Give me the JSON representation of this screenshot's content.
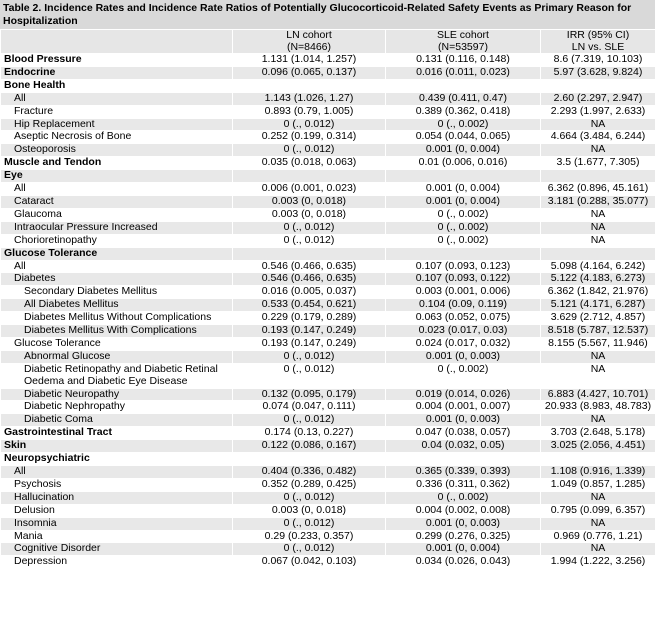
{
  "title": "Table 2. Incidence Rates and Incidence Rate Ratios of Potentially Glucocorticoid-Related Safety Events as Primary Reason for Hospitalization",
  "columns": [
    [
      "LN cohort",
      "(N=8466)"
    ],
    [
      "SLE cohort",
      "(N=53597)"
    ],
    [
      "IRR (95% CI)",
      "LN vs. SLE"
    ]
  ],
  "sections": [
    {
      "label": "Blood Pressure",
      "cells": [
        "1.131 (1.014, 1.257)",
        "0.131 (0.116, 0.148)",
        "8.6 (7.319, 10.103)"
      ]
    },
    {
      "label": "Endocrine",
      "cells": [
        "0.096 (0.065, 0.137)",
        "0.016 (0.011, 0.023)",
        "5.97 (3.628, 9.824)"
      ]
    },
    {
      "label": "Bone Health",
      "rows": [
        {
          "label": "All",
          "cells": [
            "1.143 (1.026, 1.27)",
            "0.439 (0.411, 0.47)",
            "2.60 (2.297, 2.947)"
          ]
        },
        {
          "label": "Fracture",
          "cells": [
            "0.893 (0.79, 1.005)",
            "0.389 (0.362, 0.418)",
            "2.293 (1.997, 2.633)"
          ]
        },
        {
          "label": "Hip Replacement",
          "cells": [
            "0 (., 0.012)",
            "0 (., 0.002)",
            "NA"
          ]
        },
        {
          "label": "Aseptic Necrosis of Bone",
          "cells": [
            "0.252 (0.199, 0.314)",
            "0.054 (0.044, 0.065)",
            "4.664 (3.484, 6.244)"
          ]
        },
        {
          "label": "Osteoporosis",
          "cells": [
            "0 (., 0.012)",
            "0.001 (0, 0.004)",
            "NA"
          ]
        }
      ]
    },
    {
      "label": "Muscle and Tendon",
      "cells": [
        "0.035 (0.018, 0.063)",
        "0.01 (0.006, 0.016)",
        "3.5 (1.677, 7.305)"
      ]
    },
    {
      "label": "Eye",
      "rows": [
        {
          "label": "All",
          "cells": [
            "0.006 (0.001, 0.023)",
            "0.001 (0, 0.004)",
            "6.362 (0.896, 45.161)"
          ]
        },
        {
          "label": "Cataract",
          "cells": [
            "0.003 (0, 0.018)",
            "0.001 (0, 0.004)",
            "3.181 (0.288, 35.077)"
          ]
        },
        {
          "label": "Glaucoma",
          "cells": [
            "0.003 (0, 0.018)",
            "0 (., 0.002)",
            "NA"
          ]
        },
        {
          "label": "Intraocular Pressure Increased",
          "cells": [
            "0 (., 0.012)",
            "0 (., 0.002)",
            "NA"
          ]
        },
        {
          "label": "Chorioretinopathy",
          "cells": [
            "0 (., 0.012)",
            "0 (., 0.002)",
            "NA"
          ]
        }
      ]
    },
    {
      "label": "Glucose Tolerance",
      "rows": [
        {
          "label": "All",
          "cells": [
            "0.546 (0.466, 0.635)",
            "0.107 (0.093, 0.123)",
            "5.098 (4.164, 6.242)"
          ]
        },
        {
          "label": "Diabetes",
          "cells": [
            "0.546 (0.466, 0.635)",
            "0.107 (0.093, 0.122)",
            "5.122 (4.183, 6.273)"
          ],
          "rows": [
            {
              "label": "Secondary Diabetes Mellitus",
              "cells": [
                "0.016 (0.005, 0.037)",
                "0.003 (0.001, 0.006)",
                "6.362 (1.842, 21.976)"
              ]
            },
            {
              "label": "All Diabetes Mellitus",
              "cells": [
                "0.533 (0.454, 0.621)",
                "0.104 (0.09, 0.119)",
                "5.121 (4.171, 6.287)"
              ]
            },
            {
              "label": "Diabetes Mellitus Without Complications",
              "cells": [
                "0.229 (0.179, 0.289)",
                "0.063 (0.052, 0.075)",
                "3.629 (2.712, 4.857)"
              ]
            },
            {
              "label": "Diabetes Mellitus With Complications",
              "cells": [
                "0.193 (0.147, 0.249)",
                "0.023 (0.017, 0.03)",
                "8.518 (5.787, 12.537)"
              ]
            }
          ]
        },
        {
          "label": "Glucose Tolerance",
          "cells": [
            "0.193 (0.147, 0.249)",
            "0.024 (0.017, 0.032)",
            "8.155 (5.567, 11.946)"
          ],
          "rows": [
            {
              "label": "Abnormal Glucose",
              "cells": [
                "0 (., 0.012)",
                "0.001 (0, 0.003)",
                "NA"
              ]
            },
            {
              "label": "Diabetic Retinopathy and Diabetic Retinal Oedema and Diabetic Eye Disease",
              "cells": [
                "0 (., 0.012)",
                "0 (., 0.002)",
                "NA"
              ]
            },
            {
              "label": "Diabetic Neuropathy",
              "cells": [
                "0.132 (0.095, 0.179)",
                "0.019 (0.014, 0.026)",
                "6.883 (4.427, 10.701)"
              ]
            },
            {
              "label": "Diabetic Nephropathy",
              "cells": [
                "0.074 (0.047, 0.111)",
                "0.004 (0.001, 0.007)",
                "20.933 (8.983, 48.783)"
              ]
            },
            {
              "label": "Diabetic Coma",
              "cells": [
                "0 (., 0.012)",
                "0.001 (0, 0.003)",
                "NA"
              ]
            }
          ]
        }
      ]
    },
    {
      "label": "Gastrointestinal Tract",
      "cells": [
        "0.174 (0.13, 0.227)",
        "0.047 (0.038, 0.057)",
        "3.703 (2.648, 5.178)"
      ]
    },
    {
      "label": "Skin",
      "cells": [
        "0.122 (0.086, 0.167)",
        "0.04 (0.032, 0.05)",
        "3.025 (2.056, 4.451)"
      ]
    },
    {
      "label": "Neuropsychiatric",
      "rows": [
        {
          "label": "All",
          "cells": [
            "0.404 (0.336, 0.482)",
            "0.365 (0.339, 0.393)",
            "1.108 (0.916, 1.339)"
          ]
        },
        {
          "label": "Psychosis",
          "cells": [
            "0.352 (0.289, 0.425)",
            "0.336 (0.311, 0.362)",
            "1.049 (0.857, 1.285)"
          ]
        },
        {
          "label": "Hallucination",
          "cells": [
            "0 (., 0.012)",
            "0 (., 0.002)",
            "NA"
          ]
        },
        {
          "label": "Delusion",
          "cells": [
            "0.003 (0, 0.018)",
            "0.004 (0.002, 0.008)",
            "0.795 (0.099, 6.357)"
          ]
        },
        {
          "label": "Insomnia",
          "cells": [
            "0 (., 0.012)",
            "0.001 (0, 0.003)",
            "NA"
          ]
        },
        {
          "label": "Mania",
          "cells": [
            "0.29 (0.233, 0.357)",
            "0.299 (0.276, 0.325)",
            "0.969 (0.776, 1.21)"
          ]
        },
        {
          "label": "Cognitive Disorder",
          "cells": [
            "0 (., 0.012)",
            "0.001 (0, 0.004)",
            "NA"
          ]
        },
        {
          "label": "Depression",
          "cells": [
            "0.067 (0.042, 0.103)",
            "0.034 (0.026, 0.043)",
            "1.994 (1.222, 3.256)"
          ]
        }
      ]
    }
  ]
}
